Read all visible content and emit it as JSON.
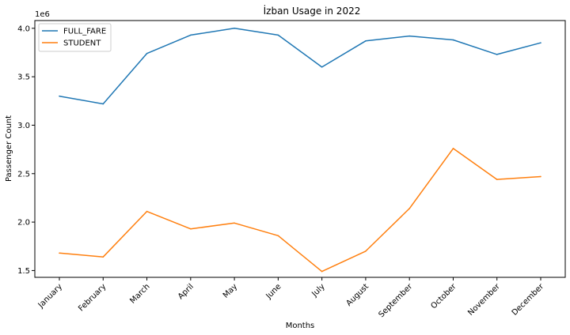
{
  "chart_data": {
    "type": "line",
    "title": "İzban Usage in 2022",
    "xlabel": "Months",
    "ylabel": "Passenger Count",
    "y_scale_label": "1e6",
    "categories": [
      "January",
      "February",
      "March",
      "April",
      "May",
      "June",
      "July",
      "August",
      "September",
      "October",
      "November",
      "December"
    ],
    "ylim": [
      1.43,
      4.08
    ],
    "yticks": [
      1.5,
      2.0,
      2.5,
      3.0,
      3.5,
      4.0
    ],
    "ytick_labels": [
      "1.5",
      "2.0",
      "2.5",
      "3.0",
      "3.5",
      "4.0"
    ],
    "grid": false,
    "legend_position": "top-left",
    "series": [
      {
        "name": "FULL_FARE",
        "color": "#1f77b4",
        "values": [
          3.3,
          3.22,
          3.74,
          3.93,
          4.0,
          3.93,
          3.6,
          3.87,
          3.92,
          3.88,
          3.73,
          3.85
        ]
      },
      {
        "name": "STUDENT",
        "color": "#ff7f0e",
        "values": [
          1.68,
          1.64,
          2.11,
          1.93,
          1.99,
          1.86,
          1.49,
          1.7,
          2.14,
          2.76,
          2.44,
          2.47
        ]
      }
    ]
  }
}
